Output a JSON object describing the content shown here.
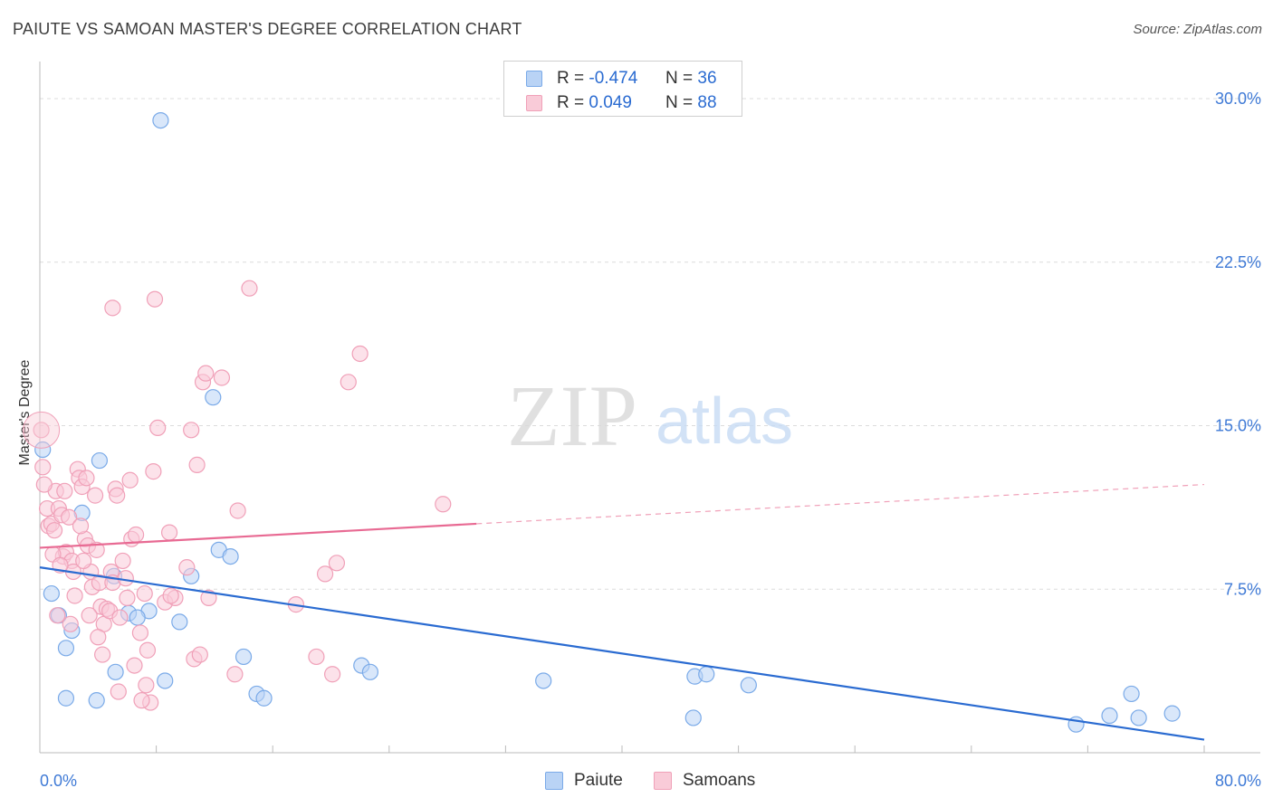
{
  "title": "PAIUTE VS SAMOAN MASTER'S DEGREE CORRELATION CHART",
  "source": "Source: ZipAtlas.com",
  "watermark": {
    "zip": "ZIP",
    "atlas": "atlas"
  },
  "legend": [
    {
      "r_label": "R =",
      "r_value": "-0.474",
      "n_label": "N =",
      "n_value": "36"
    },
    {
      "r_label": "R =",
      "r_value": "0.049",
      "n_label": "N =",
      "n_value": "88"
    }
  ],
  "chart_data": {
    "type": "scatter",
    "xlabel": "",
    "ylabel": "Master's Degree",
    "xlim": [
      0,
      80
    ],
    "ylim": [
      0,
      30
    ],
    "x_tick_labels": [
      "0.0%",
      "80.0%"
    ],
    "y_ticks": [
      7.5,
      15.0,
      22.5,
      30.0
    ],
    "y_tick_labels": [
      "7.5%",
      "15.0%",
      "22.5%",
      "30.0%"
    ],
    "grid": true,
    "legend_position": "bottom",
    "series": [
      {
        "name": "Paiute",
        "color": "#7aaae8",
        "fill": "#b9d3f5",
        "trend": {
          "x": [
            0,
            80
          ],
          "y": [
            8.5,
            0.6
          ],
          "color": "#2a6bd1"
        },
        "points": [
          [
            8.3,
            29.0
          ],
          [
            0.2,
            13.9
          ],
          [
            4.1,
            13.4
          ],
          [
            11.9,
            16.3
          ],
          [
            2.9,
            11.0
          ],
          [
            12.3,
            9.3
          ],
          [
            13.1,
            9.0
          ],
          [
            10.4,
            8.1
          ],
          [
            5.1,
            8.1
          ],
          [
            0.8,
            7.3
          ],
          [
            1.3,
            6.3
          ],
          [
            7.5,
            6.5
          ],
          [
            6.1,
            6.4
          ],
          [
            6.7,
            6.2
          ],
          [
            9.6,
            6.0
          ],
          [
            2.2,
            5.6
          ],
          [
            1.8,
            4.8
          ],
          [
            14.0,
            4.4
          ],
          [
            22.1,
            4.0
          ],
          [
            22.7,
            3.7
          ],
          [
            5.2,
            3.7
          ],
          [
            8.6,
            3.3
          ],
          [
            34.6,
            3.3
          ],
          [
            45.0,
            3.5
          ],
          [
            45.8,
            3.6
          ],
          [
            48.7,
            3.1
          ],
          [
            14.9,
            2.7
          ],
          [
            15.4,
            2.5
          ],
          [
            3.9,
            2.4
          ],
          [
            44.9,
            1.6
          ],
          [
            71.2,
            1.3
          ],
          [
            73.5,
            1.7
          ],
          [
            75.5,
            1.6
          ],
          [
            77.8,
            1.8
          ],
          [
            75.0,
            2.7
          ],
          [
            1.8,
            2.5
          ]
        ]
      },
      {
        "name": "Samoans",
        "color": "#f0a0b8",
        "fill": "#f9cbd8",
        "trend": {
          "x": [
            0,
            30
          ],
          "y": [
            9.4,
            10.5
          ],
          "color": "#e86a93"
        },
        "trend_dashed": {
          "x": [
            30,
            80
          ],
          "y": [
            10.5,
            12.3
          ],
          "color": "#f0a0b8"
        },
        "points": [
          [
            0.1,
            14.8
          ],
          [
            0.2,
            13.1
          ],
          [
            0.5,
            11.2
          ],
          [
            0.6,
            10.4
          ],
          [
            0.8,
            10.5
          ],
          [
            1.0,
            10.2
          ],
          [
            1.1,
            12.0
          ],
          [
            1.3,
            11.2
          ],
          [
            1.5,
            10.9
          ],
          [
            1.6,
            9.0
          ],
          [
            1.8,
            9.2
          ],
          [
            2.0,
            10.8
          ],
          [
            2.2,
            8.8
          ],
          [
            2.4,
            7.2
          ],
          [
            2.6,
            13.0
          ],
          [
            2.7,
            12.6
          ],
          [
            2.9,
            12.2
          ],
          [
            3.1,
            9.8
          ],
          [
            3.2,
            12.6
          ],
          [
            3.3,
            9.5
          ],
          [
            3.5,
            8.3
          ],
          [
            3.6,
            7.6
          ],
          [
            3.8,
            11.8
          ],
          [
            3.9,
            9.3
          ],
          [
            4.1,
            7.8
          ],
          [
            4.2,
            6.7
          ],
          [
            4.4,
            5.9
          ],
          [
            4.6,
            6.6
          ],
          [
            4.8,
            6.5
          ],
          [
            4.9,
            8.3
          ],
          [
            5.0,
            7.8
          ],
          [
            5.2,
            12.1
          ],
          [
            5.3,
            11.8
          ],
          [
            5.5,
            6.2
          ],
          [
            5.7,
            8.8
          ],
          [
            5.9,
            8.0
          ],
          [
            6.2,
            12.5
          ],
          [
            6.3,
            9.8
          ],
          [
            6.6,
            10.0
          ],
          [
            6.9,
            5.5
          ],
          [
            7.2,
            7.3
          ],
          [
            7.4,
            4.7
          ],
          [
            7.6,
            2.3
          ],
          [
            7.8,
            12.9
          ],
          [
            7.9,
            20.8
          ],
          [
            8.1,
            14.9
          ],
          [
            8.6,
            6.9
          ],
          [
            8.9,
            10.1
          ],
          [
            9.3,
            7.1
          ],
          [
            10.1,
            8.5
          ],
          [
            10.4,
            14.8
          ],
          [
            10.6,
            4.3
          ],
          [
            10.8,
            13.2
          ],
          [
            11.0,
            4.5
          ],
          [
            11.2,
            17.0
          ],
          [
            11.4,
            17.4
          ],
          [
            11.6,
            7.1
          ],
          [
            12.5,
            17.2
          ],
          [
            13.4,
            3.6
          ],
          [
            13.6,
            11.1
          ],
          [
            14.4,
            21.3
          ],
          [
            17.6,
            6.8
          ],
          [
            19.0,
            4.4
          ],
          [
            19.6,
            8.2
          ],
          [
            20.4,
            8.7
          ],
          [
            21.2,
            17.0
          ],
          [
            22.0,
            18.3
          ],
          [
            20.1,
            3.6
          ],
          [
            27.7,
            11.4
          ],
          [
            5.0,
            20.4
          ],
          [
            5.4,
            2.8
          ],
          [
            7.0,
            2.4
          ],
          [
            7.3,
            3.1
          ],
          [
            6.5,
            4.0
          ],
          [
            4.3,
            4.5
          ],
          [
            2.1,
            5.9
          ],
          [
            1.2,
            6.3
          ],
          [
            2.3,
            8.3
          ],
          [
            3.4,
            6.3
          ],
          [
            9.0,
            7.2
          ],
          [
            0.9,
            9.1
          ],
          [
            1.4,
            8.6
          ],
          [
            2.8,
            10.4
          ],
          [
            3.0,
            8.8
          ],
          [
            1.7,
            12.0
          ],
          [
            0.3,
            12.3
          ],
          [
            4.0,
            5.3
          ],
          [
            6.0,
            7.1
          ]
        ]
      }
    ]
  }
}
